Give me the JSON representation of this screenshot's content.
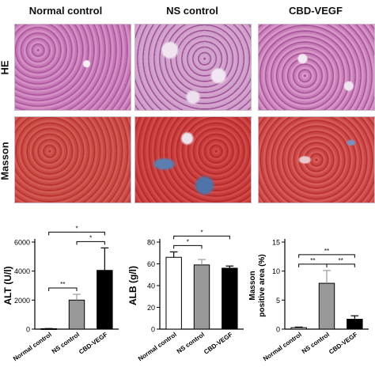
{
  "columns": [
    "Normal control",
    "NS control",
    "CBD-VEGF"
  ],
  "rows": [
    "HE",
    "Masson"
  ],
  "colors": {
    "normal": "#ffffff",
    "ns": "#999999",
    "cbd": "#000000"
  },
  "chart_data": [
    {
      "type": "bar",
      "categories": [
        "Normal control",
        "NS control",
        "CBD-VEGF"
      ],
      "values": [
        30,
        2000,
        4050
      ],
      "errors": [
        10,
        400,
        1550
      ],
      "ylabel": "ALT (U/l)",
      "ylim": [
        0,
        6000
      ],
      "yticks": [
        0,
        2000,
        4000,
        6000
      ],
      "significance": [
        {
          "from": 0,
          "to": 1,
          "label": "**"
        },
        {
          "from": 1,
          "to": 2,
          "label": "*"
        },
        {
          "from": 0,
          "to": 2,
          "label": "*"
        }
      ]
    },
    {
      "type": "bar",
      "categories": [
        "Normal control",
        "NS control",
        "CBD-VEGF"
      ],
      "values": [
        66,
        59,
        56
      ],
      "errors": [
        5,
        5,
        2
      ],
      "ylabel": "ALB (g/l)",
      "ylim": [
        0,
        80
      ],
      "yticks": [
        0,
        20,
        40,
        60,
        80
      ],
      "significance": [
        {
          "from": 0,
          "to": 1,
          "label": "*"
        },
        {
          "from": 0,
          "to": 2,
          "label": "*"
        }
      ]
    },
    {
      "type": "bar",
      "categories": [
        "Normal control",
        "NS control",
        "CBD-VEGF"
      ],
      "values": [
        0.25,
        7.9,
        1.7
      ],
      "errors": [
        0.1,
        2.2,
        0.6
      ],
      "ylabel": "Masson positive area (%)",
      "ylabel_lines": [
        "Masson",
        "positive area (%)"
      ],
      "ylim": [
        0,
        15
      ],
      "yticks": [
        0,
        5,
        10,
        15
      ],
      "significance": [
        {
          "from": 0,
          "to": 1,
          "label": "**"
        },
        {
          "from": 1,
          "to": 2,
          "label": "**"
        },
        {
          "from": 0,
          "to": 2,
          "label": "**"
        }
      ]
    }
  ]
}
